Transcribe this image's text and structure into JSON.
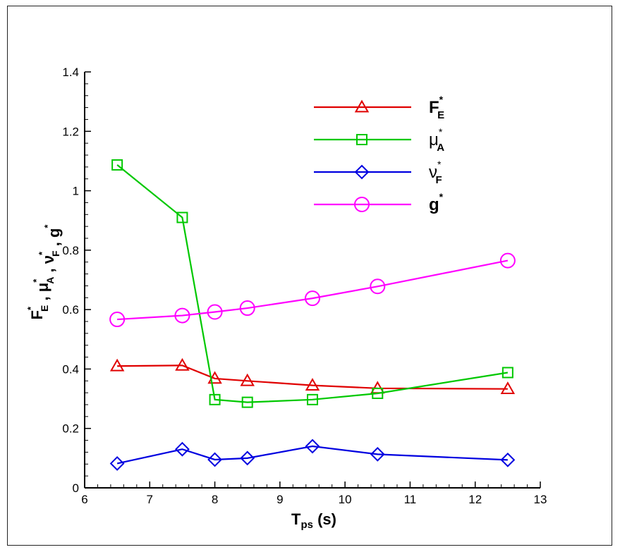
{
  "chart_data": {
    "type": "line",
    "title": "",
    "x_label": {
      "main": "T",
      "sub": "ps",
      "unit": " (s)"
    },
    "y_label": {
      "parts": [
        {
          "main": "F",
          "sup": "*",
          "sub": "E",
          "italic": false
        },
        {
          "main": " , ",
          "sup": "",
          "sub": "",
          "italic": false
        },
        {
          "main": "μ",
          "sup": "*",
          "sub": "A",
          "italic": false
        },
        {
          "main": " , ",
          "sup": "",
          "sub": "",
          "italic": false
        },
        {
          "main": "ν",
          "sup": "*",
          "sub": "F",
          "italic": false
        },
        {
          "main": " , ",
          "sup": "",
          "sub": "",
          "italic": false
        },
        {
          "main": "g",
          "sup": "*",
          "sub": "",
          "italic": false
        }
      ]
    },
    "xlim": [
      6,
      13
    ],
    "ylim": [
      0,
      1.4
    ],
    "x_ticks": [
      6,
      7,
      8,
      9,
      10,
      11,
      12,
      13
    ],
    "y_ticks": [
      0,
      0.2,
      0.4,
      0.6,
      0.8,
      1,
      1.2,
      1.4
    ],
    "y_tick_labels": [
      "0",
      "0.2",
      "0.4",
      "0.6",
      "0.8",
      "1",
      "1.2",
      "1.4"
    ],
    "grid": false,
    "legend_position": "top-right",
    "x": [
      6.5,
      7.5,
      8,
      8.5,
      9.5,
      10.5,
      12.5
    ],
    "series": [
      {
        "key": "fe",
        "name_main": "F",
        "name_sup": "*",
        "name_sub": "E",
        "bold": true,
        "color": "#e00000",
        "marker": "triangle",
        "values": [
          0.41,
          0.412,
          0.368,
          0.36,
          0.345,
          0.335,
          0.333
        ]
      },
      {
        "key": "mua",
        "name_main": "μ",
        "name_sup": "*",
        "name_sub": "A",
        "bold": false,
        "color": "#00c800",
        "marker": "square",
        "values": [
          1.087,
          0.91,
          0.297,
          0.288,
          0.297,
          0.318,
          0.388
        ]
      },
      {
        "key": "nuf",
        "name_main": "ν",
        "name_sup": "*",
        "name_sub": "F",
        "bold": false,
        "color": "#0000e0",
        "marker": "diamond",
        "values": [
          0.082,
          0.13,
          0.095,
          0.1,
          0.14,
          0.113,
          0.094
        ]
      },
      {
        "key": "g",
        "name_main": "g",
        "name_sup": "*",
        "name_sub": "",
        "bold": true,
        "color": "#ff00ff",
        "marker": "circle",
        "values": [
          0.567,
          0.58,
          0.592,
          0.605,
          0.638,
          0.678,
          0.765
        ]
      }
    ]
  }
}
